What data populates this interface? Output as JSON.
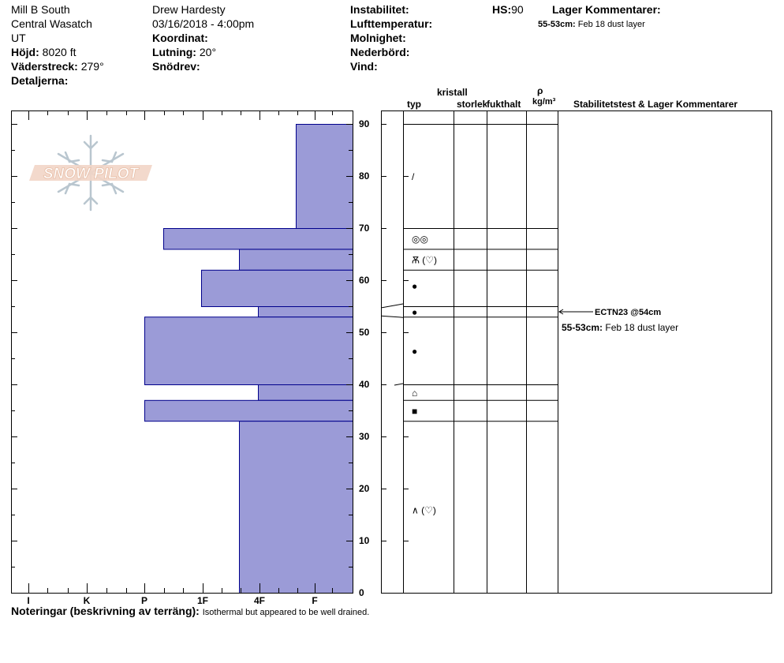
{
  "header": {
    "location": "Mill B South",
    "range": "Central Wasatch",
    "state": "UT",
    "elevation_label": "Höjd:",
    "elevation_value": "8020 ft",
    "aspect_label": "Väderstreck:",
    "aspect_value": "279°",
    "details_label": "Detaljerna:",
    "observer": "Drew Hardesty",
    "datetime": "03/16/2018 - 4:00pm",
    "coord_label": "Koordinat:",
    "slope_label": "Lutning:",
    "slope_value": "20°",
    "wind_loading_label": "Snödrev:",
    "instability_label": "Instabilitet:",
    "air_temp_label": "Lufttemperatur:",
    "sky_label": "Molnighet:",
    "precip_label": "Nederbörd:",
    "wind_label": "Vind:",
    "hs_label": "HS:",
    "hs_value": "90",
    "layer_comments_label": "Lager Kommentarer:",
    "layer_comment_range": "55-53cm:",
    "layer_comment_text": "Feb 18 dust layer"
  },
  "logo": {
    "text": "SNOW PILOT"
  },
  "columns": {
    "kristall": "kristall",
    "typ": "typ",
    "storlek": "storlek",
    "fukthalt": "fukthalt",
    "rho": "ρ",
    "density_unit": "kg/m³",
    "stability": "Stabilitetstest & Lager Kommentarer"
  },
  "stability": {
    "test_label": "ECTN23 @54cm",
    "comment_range": "55-53cm:",
    "comment_text": "Feb 18 dust layer"
  },
  "notes": {
    "label": "Noteringar (beskrivning av terräng):",
    "text": "Isothermal but appeared to be well drained."
  },
  "chart_data": {
    "type": "bar",
    "title": "",
    "orientation": "horizontal",
    "hardness_scale": [
      "I",
      "K",
      "P",
      "1F",
      "4F",
      "F"
    ],
    "hardness_scale_order_note": "",
    "y_axis": {
      "min": 0,
      "max": 90,
      "ticks": [
        0,
        10,
        20,
        30,
        40,
        50,
        60,
        70,
        80,
        90
      ]
    },
    "bar_color": "#9b9bd7",
    "bar_edge_color": "#00008b",
    "layers": [
      {
        "top": 90,
        "bottom": 70,
        "hardness": "F"
      },
      {
        "top": 70,
        "bottom": 66,
        "hardness": "P+"
      },
      {
        "top": 66,
        "bottom": 62,
        "hardness": "4F"
      },
      {
        "top": 62,
        "bottom": 55,
        "hardness": "1F"
      },
      {
        "top": 55,
        "bottom": 53,
        "hardness": "4F-"
      },
      {
        "top": 53,
        "bottom": 40,
        "hardness": "P"
      },
      {
        "top": 40,
        "bottom": 37,
        "hardness": "4F-"
      },
      {
        "top": 37,
        "bottom": 33,
        "hardness": "P"
      },
      {
        "top": 33,
        "bottom": 0,
        "hardness": "4F"
      }
    ],
    "grain_layer_boundaries": [
      90,
      70,
      66,
      62,
      55,
      53,
      40,
      37,
      33,
      0
    ],
    "grain_symbols": [
      {
        "depth": 80,
        "symbol": "/"
      },
      {
        "depth": 68,
        "symbol": "◎◎"
      },
      {
        "depth": 64,
        "symbol": "Ѫ (♡)"
      },
      {
        "depth": 59,
        "symbol": "●"
      },
      {
        "depth": 54,
        "symbol": "●"
      },
      {
        "depth": 46.5,
        "symbol": "●"
      },
      {
        "depth": 38.5,
        "symbol": "⌂"
      },
      {
        "depth": 35,
        "symbol": "■"
      },
      {
        "depth": 16,
        "symbol": "∧ (♡)"
      }
    ]
  }
}
